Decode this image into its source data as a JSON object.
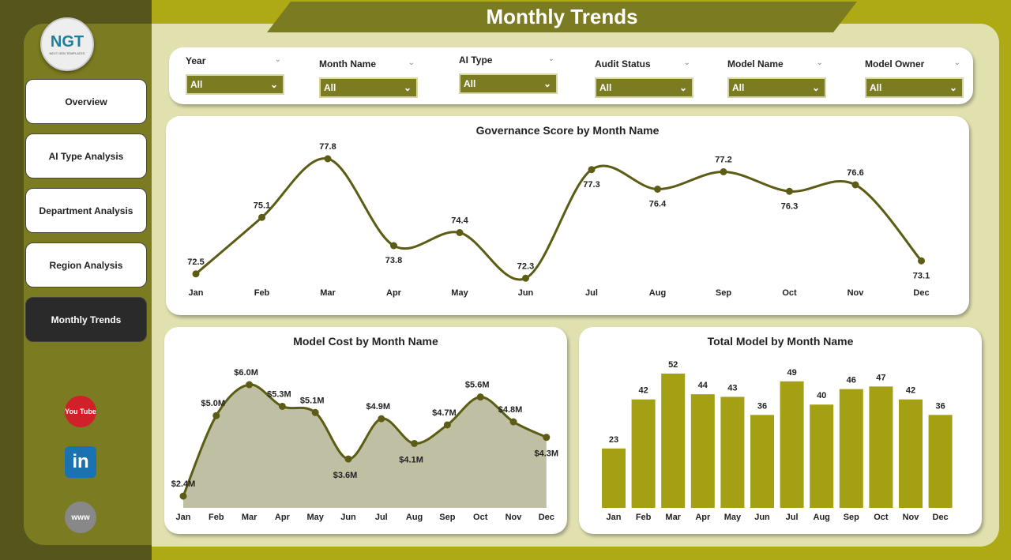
{
  "title": "Monthly Trends",
  "logo": {
    "text": "NGT",
    "subtitle": "NEXT GEN TEMPLATES"
  },
  "nav": [
    {
      "label": "Overview"
    },
    {
      "label": "AI Type Analysis"
    },
    {
      "label": "Department Analysis"
    },
    {
      "label": "Region Analysis"
    },
    {
      "label": "Monthly Trends",
      "active": true
    }
  ],
  "social": [
    {
      "icon": "youtube-icon",
      "label": "You Tube"
    },
    {
      "icon": "linkedin-icon",
      "label": "in"
    },
    {
      "icon": "globe-icon",
      "label": "www"
    }
  ],
  "filters": [
    {
      "label": "Year",
      "value": "All"
    },
    {
      "label": "Month Name",
      "value": "All"
    },
    {
      "label": "AI Type",
      "value": "All"
    },
    {
      "label": "Audit Status",
      "value": "All"
    },
    {
      "label": "Model Name",
      "value": "All"
    },
    {
      "label": "Model Owner",
      "value": "All"
    }
  ],
  "colors": {
    "accent": "#7b7b22",
    "line": "#5c5c14",
    "bar": "#a3a014",
    "area": "#bfbfa3",
    "background": "#adaa16"
  },
  "chart_data": [
    {
      "type": "line",
      "title": "Governance Score by Month Name",
      "categories": [
        "Jan",
        "Feb",
        "Mar",
        "Apr",
        "May",
        "Jun",
        "Jul",
        "Aug",
        "Sep",
        "Oct",
        "Nov",
        "Dec"
      ],
      "values": [
        72.5,
        75.1,
        77.8,
        73.8,
        74.4,
        72.3,
        77.3,
        76.4,
        77.2,
        76.3,
        76.6,
        73.1
      ],
      "labels": [
        "72.5",
        "75.1",
        "77.8",
        "73.8",
        "74.4",
        "72.3",
        "77.3",
        "76.4",
        "77.2",
        "76.3",
        "76.6",
        "73.1"
      ]
    },
    {
      "type": "area",
      "title": "Model Cost by Month Name",
      "categories": [
        "Jan",
        "Feb",
        "Mar",
        "Apr",
        "May",
        "Jun",
        "Jul",
        "Aug",
        "Sep",
        "Oct",
        "Nov",
        "Dec"
      ],
      "values": [
        2.4,
        5.0,
        6.0,
        5.3,
        5.1,
        3.6,
        4.9,
        4.1,
        4.7,
        5.6,
        4.8,
        4.3
      ],
      "labels": [
        "$2.4M",
        "$5.0M",
        "$6.0M",
        "$5.3M",
        "$5.1M",
        "$3.6M",
        "$4.9M",
        "$4.1M",
        "$4.7M",
        "$5.6M",
        "$4.8M",
        "$4.3M"
      ]
    },
    {
      "type": "bar",
      "title": "Total Model by Month Name",
      "categories": [
        "Jan",
        "Feb",
        "Mar",
        "Apr",
        "May",
        "Jun",
        "Jul",
        "Aug",
        "Sep",
        "Oct",
        "Nov",
        "Dec"
      ],
      "values": [
        23,
        42,
        52,
        44,
        43,
        36,
        49,
        40,
        46,
        47,
        42,
        36
      ],
      "labels": [
        "23",
        "42",
        "52",
        "44",
        "43",
        "36",
        "49",
        "40",
        "46",
        "47",
        "42",
        "36"
      ]
    }
  ]
}
